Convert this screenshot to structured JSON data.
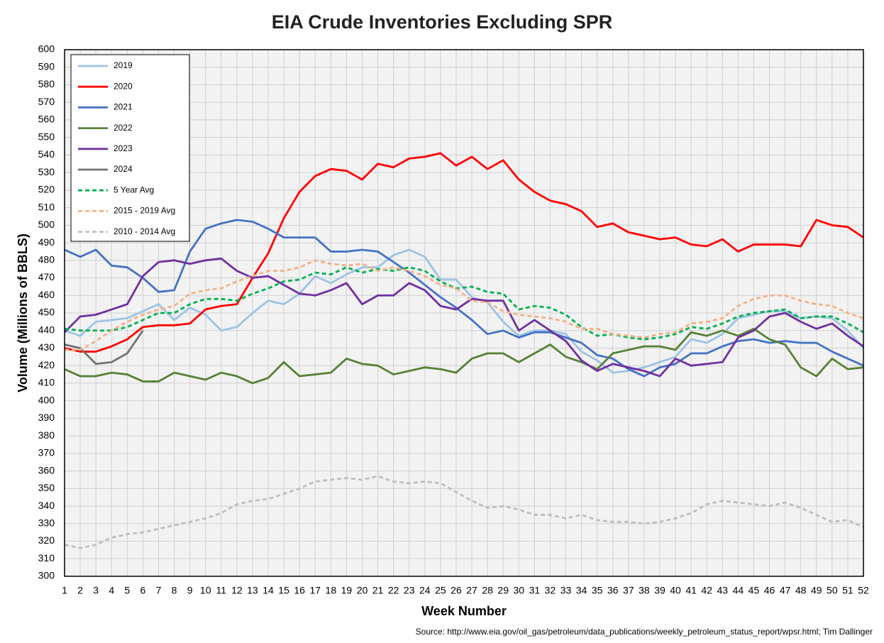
{
  "chart_data": {
    "type": "line",
    "title": "EIA Crude Inventories Excluding SPR",
    "x_label": "Week Number",
    "y_label": "Volume (Millions of BBLS)",
    "source": "Source: http://www.eia.gov/oil_gas/petroleum/data_publications/weekly_petroleum_status_report/wpsr.html; Tim Dallinger",
    "x": [
      1,
      2,
      3,
      4,
      5,
      6,
      7,
      8,
      9,
      10,
      11,
      12,
      13,
      14,
      15,
      16,
      17,
      18,
      19,
      20,
      21,
      22,
      23,
      24,
      25,
      26,
      27,
      28,
      29,
      30,
      31,
      32,
      33,
      34,
      35,
      36,
      37,
      38,
      39,
      40,
      41,
      42,
      43,
      44,
      45,
      46,
      47,
      48,
      49,
      50,
      51,
      52
    ],
    "xlim": [
      1,
      52
    ],
    "xticks": [
      1,
      2,
      3,
      4,
      5,
      6,
      7,
      8,
      9,
      10,
      11,
      12,
      13,
      14,
      15,
      16,
      17,
      18,
      19,
      20,
      21,
      22,
      23,
      24,
      25,
      26,
      27,
      28,
      29,
      30,
      31,
      32,
      33,
      34,
      35,
      36,
      37,
      38,
      39,
      40,
      41,
      42,
      43,
      44,
      45,
      46,
      47,
      48,
      49,
      50,
      51,
      52
    ],
    "ylim": [
      300,
      600
    ],
    "yticks": [
      300,
      310,
      320,
      330,
      340,
      350,
      360,
      370,
      380,
      390,
      400,
      410,
      420,
      430,
      440,
      450,
      460,
      470,
      480,
      490,
      500,
      510,
      520,
      530,
      540,
      550,
      560,
      570,
      580,
      590,
      600
    ],
    "grid": true,
    "legend": "upper left",
    "series": [
      {
        "name": "2019",
        "color": "#9dc3e6",
        "dash": false,
        "values": [
          440,
          437,
          445,
          446,
          447,
          451,
          455,
          446,
          453,
          449,
          440,
          442,
          450,
          457,
          455,
          461,
          471,
          467,
          472,
          476,
          476,
          483,
          486,
          482,
          469,
          469,
          459,
          456,
          445,
          437,
          440,
          440,
          438,
          428,
          423,
          416,
          417,
          419,
          422,
          425,
          435,
          433,
          438,
          447,
          449,
          451,
          451,
          447,
          448,
          447,
          440,
          430
        ]
      },
      {
        "name": "2020",
        "color": "#ff0000",
        "dash": false,
        "values": [
          430,
          428,
          428,
          431,
          435,
          442,
          443,
          443,
          444,
          452,
          454,
          455,
          470,
          484,
          504,
          519,
          528,
          532,
          531,
          526,
          535,
          533,
          538,
          539,
          541,
          534,
          539,
          532,
          537,
          526,
          519,
          514,
          512,
          508,
          499,
          501,
          496,
          494,
          492,
          493,
          489,
          488,
          492,
          485,
          489,
          489,
          489,
          488,
          503,
          500,
          499,
          493
        ]
      },
      {
        "name": "2021",
        "color": "#4472c4",
        "dash": false,
        "values": [
          486,
          482,
          486,
          477,
          476,
          470,
          462,
          463,
          485,
          498,
          501,
          503,
          502,
          498,
          493,
          493,
          493,
          485,
          485,
          486,
          485,
          479,
          473,
          466,
          459,
          453,
          446,
          438,
          440,
          436,
          439,
          439,
          436,
          433,
          426,
          424,
          418,
          414,
          419,
          421,
          427,
          427,
          431,
          434,
          435,
          433,
          434,
          433,
          433,
          428,
          424,
          420
        ]
      },
      {
        "name": "2022",
        "color": "#548235",
        "dash": false,
        "values": [
          418,
          414,
          414,
          416,
          415,
          411,
          411,
          416,
          414,
          412,
          416,
          414,
          410,
          413,
          422,
          414,
          415,
          416,
          424,
          421,
          420,
          415,
          417,
          419,
          418,
          416,
          424,
          427,
          427,
          422,
          427,
          432,
          425,
          422,
          418,
          427,
          429,
          431,
          431,
          429,
          439,
          437,
          440,
          437,
          441,
          435,
          432,
          419,
          414,
          424,
          418,
          419
        ]
      },
      {
        "name": "2023",
        "color": "#7030a0",
        "dash": false,
        "values": [
          439,
          448,
          449,
          452,
          455,
          471,
          479,
          480,
          478,
          480,
          481,
          474,
          470,
          471,
          466,
          461,
          460,
          463,
          467,
          455,
          460,
          460,
          467,
          463,
          454,
          452,
          458,
          457,
          457,
          440,
          446,
          440,
          434,
          423,
          417,
          421,
          419,
          417,
          414,
          424,
          420,
          421,
          422,
          436,
          440,
          448,
          450,
          445,
          441,
          444,
          437,
          431
        ]
      },
      {
        "name": "2024",
        "color": "#767171",
        "dash": false,
        "values": [
          432,
          430,
          421,
          422,
          427,
          440,
          null,
          null,
          null,
          null,
          null,
          null,
          null,
          null,
          null,
          null,
          null,
          null,
          null,
          null,
          null,
          null,
          null,
          null,
          null,
          null,
          null,
          null,
          null,
          null,
          null,
          null,
          null,
          null,
          null,
          null,
          null,
          null,
          null,
          null,
          null,
          null,
          null,
          null,
          null,
          null,
          null,
          null,
          null,
          null,
          null,
          null
        ]
      },
      {
        "name": "5 Year Avg",
        "color": "#00b050",
        "dash": true,
        "values": [
          441,
          440,
          440,
          440,
          442,
          446,
          450,
          450,
          455,
          458,
          458,
          457,
          461,
          464,
          468,
          469,
          473,
          472,
          476,
          473,
          475,
          474,
          476,
          474,
          468,
          464,
          465,
          462,
          461,
          452,
          454,
          453,
          449,
          442,
          437,
          438,
          436,
          435,
          436,
          438,
          442,
          441,
          444,
          448,
          450,
          451,
          452,
          447,
          448,
          448,
          444,
          439
        ]
      },
      {
        "name": "2015 - 2019 Avg",
        "color": "#f4b183",
        "dash": true,
        "values": [
          429,
          429,
          434,
          440,
          445,
          449,
          452,
          454,
          461,
          463,
          464,
          468,
          471,
          474,
          474,
          476,
          480,
          478,
          477,
          478,
          474,
          476,
          474,
          471,
          466,
          464,
          457,
          456,
          451,
          449,
          448,
          447,
          445,
          441,
          441,
          438,
          437,
          436,
          438,
          439,
          444,
          445,
          447,
          454,
          458,
          460,
          460,
          457,
          455,
          454,
          450,
          447
        ]
      },
      {
        "name": "2010 - 2014 Avg",
        "color": "#bfbfbf",
        "dash": true,
        "values": [
          318,
          316,
          318,
          322,
          324,
          325,
          327,
          329,
          331,
          333,
          336,
          341,
          343,
          344,
          347,
          350,
          354,
          355,
          356,
          355,
          357,
          354,
          353,
          354,
          353,
          348,
          343,
          339,
          340,
          338,
          335,
          335,
          333,
          335,
          332,
          331,
          331,
          330,
          331,
          333,
          336,
          341,
          343,
          342,
          341,
          340,
          342,
          339,
          335,
          331,
          332,
          328
        ]
      }
    ]
  }
}
